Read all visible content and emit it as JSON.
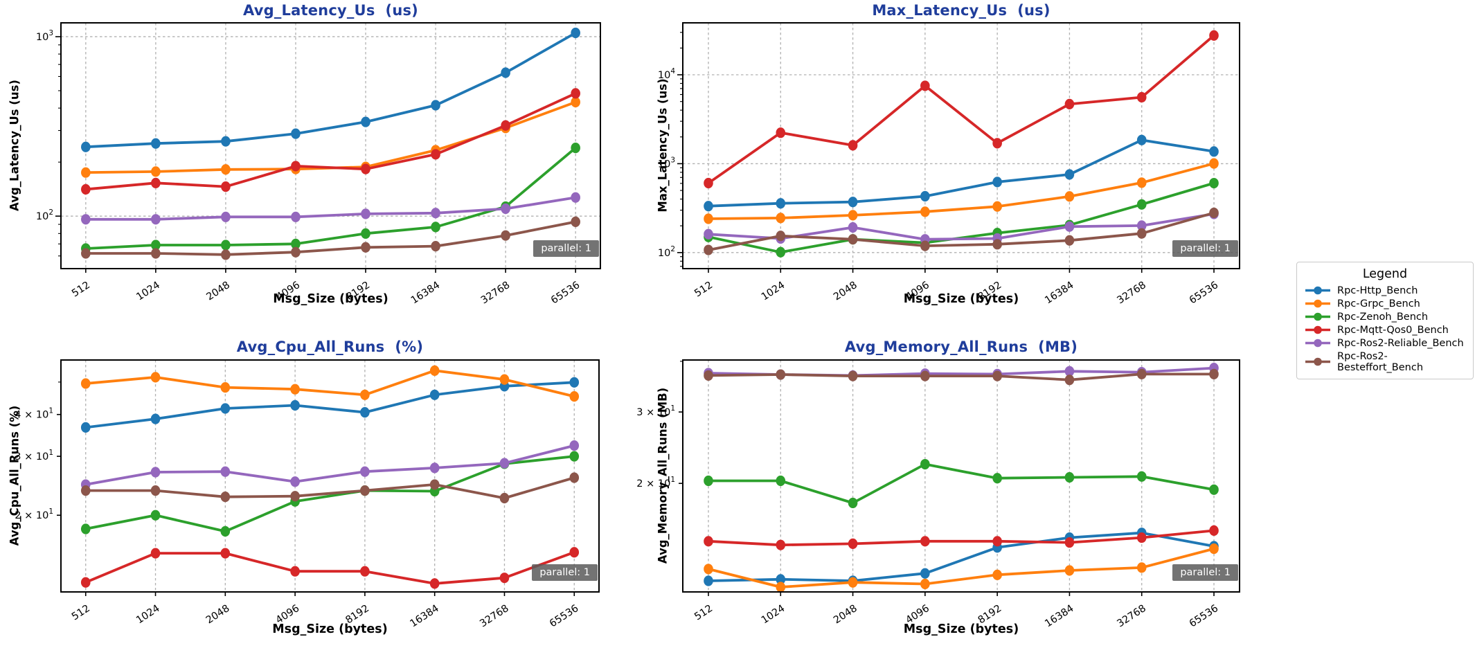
{
  "page": {
    "background": "#ffffff",
    "title_color": "#1f3d9b",
    "grid_color": "#b0b0b0",
    "badge_bg": "#5a5a5a",
    "badge_text_color": "#ffffff"
  },
  "legend": {
    "title": "Legend",
    "position": "right",
    "items": [
      {
        "label": "Rpc-Http_Bench",
        "color": "#1f77b4"
      },
      {
        "label": "Rpc-Grpc_Bench",
        "color": "#ff7f0e"
      },
      {
        "label": "Rpc-Zenoh_Bench",
        "color": "#2ca02c"
      },
      {
        "label": "Rpc-Mqtt-Qos0_Bench",
        "color": "#d62728"
      },
      {
        "label": "Rpc-Ros2-Reliable_Bench",
        "color": "#9467bd"
      },
      {
        "label": "Rpc-Ros2-Besteffort_Bench",
        "color": "#8c564b"
      }
    ]
  },
  "chart_data": [
    {
      "type": "line",
      "log_y": true,
      "grid": "x-dashed + y-major-dashed",
      "title": "Avg_Latency_Us  (us)",
      "xlabel": "Msg_Size (bytes)",
      "ylabel": "Avg_Latency_Us (us)",
      "badge": "parallel: 1",
      "categories": [
        512,
        1024,
        2048,
        4096,
        8192,
        16384,
        32768,
        65536
      ],
      "ylim": [
        51,
        1194
      ],
      "yticks": [
        {
          "value": 100,
          "base": "10",
          "exp": "2",
          "major": true
        },
        {
          "value": 1000,
          "base": "10",
          "exp": "3",
          "major": true
        }
      ],
      "series": [
        {
          "name": "Rpc-Http_Bench",
          "values": [
            243,
            254,
            261,
            288,
            335,
            415,
            630,
            1050
          ]
        },
        {
          "name": "Rpc-Grpc_Bench",
          "values": [
            175,
            177,
            182,
            183,
            188,
            233,
            310,
            432
          ]
        },
        {
          "name": "Rpc-Zenoh_Bench",
          "values": [
            66,
            69,
            69,
            70,
            80,
            87,
            113,
            240
          ]
        },
        {
          "name": "Rpc-Mqtt-Qos0_Bench",
          "values": [
            141,
            153,
            146,
            190,
            183,
            221,
            320,
            483
          ]
        },
        {
          "name": "Rpc-Ros2-Reliable_Bench",
          "values": [
            96,
            96,
            99,
            99,
            103,
            104,
            110,
            127
          ]
        },
        {
          "name": "Rpc-Ros2-Besteffort_Bench",
          "values": [
            62,
            62,
            61,
            63,
            67,
            68,
            78,
            93
          ]
        }
      ]
    },
    {
      "type": "line",
      "log_y": true,
      "grid": "x-dashed + y-major-dashed",
      "title": "Max_Latency_Us  (us)",
      "xlabel": "Msg_Size (bytes)",
      "ylabel": "Max_Latency_Us (us)",
      "badge": "parallel: 1",
      "categories": [
        512,
        1024,
        2048,
        4096,
        8192,
        16384,
        32768,
        65536
      ],
      "ylim": [
        66,
        38400
      ],
      "yticks": [
        {
          "value": 100,
          "base": "10",
          "exp": "2",
          "major": true
        },
        {
          "value": 1000,
          "base": "10",
          "exp": "3",
          "major": true
        },
        {
          "value": 10000,
          "base": "10",
          "exp": "4",
          "major": true
        }
      ],
      "series": [
        {
          "name": "Rpc-Http_Bench",
          "values": [
            333,
            358,
            371,
            430,
            622,
            757,
            1845,
            1371
          ]
        },
        {
          "name": "Rpc-Grpc_Bench",
          "values": [
            240,
            245,
            263,
            288,
            330,
            428,
            611,
            1005
          ]
        },
        {
          "name": "Rpc-Zenoh_Bench",
          "values": [
            150,
            101,
            141,
            129,
            166,
            204,
            348,
            604
          ]
        },
        {
          "name": "Rpc-Mqtt-Qos0_Bench",
          "values": [
            605,
            2230,
            1610,
            7520,
            1700,
            4680,
            5590,
            27700
          ]
        },
        {
          "name": "Rpc-Ros2-Reliable_Bench",
          "values": [
            161,
            144,
            192,
            141,
            144,
            196,
            201,
            272
          ]
        },
        {
          "name": "Rpc-Ros2-Besteffort_Bench",
          "values": [
            107,
            154,
            141,
            119,
            124,
            137,
            164,
            280
          ]
        }
      ]
    },
    {
      "type": "line",
      "log_y": true,
      "grid": "x-dashed",
      "title": "Avg_Cpu_All_Runs  (%)",
      "xlabel": "Msg_Size (bytes)",
      "ylabel": "Avg_Cpu_All_Runs (%)",
      "badge": "parallel: 1",
      "categories": [
        512,
        1024,
        2048,
        4096,
        8192,
        16384,
        32768,
        65536
      ],
      "ylim": [
        11.8,
        58.2
      ],
      "yticks": [
        {
          "value": 20,
          "base": "2 × 10",
          "exp": "1",
          "major": false
        },
        {
          "value": 30,
          "base": "3 × 10",
          "exp": "1",
          "major": false
        },
        {
          "value": 40,
          "base": "4 × 10",
          "exp": "1",
          "major": false
        }
      ],
      "series": [
        {
          "name": "Rpc-Http_Bench",
          "values": [
            36.6,
            38.8,
            41.7,
            42.6,
            40.6,
            45.8,
            48.6,
            49.9
          ]
        },
        {
          "name": "Rpc-Grpc_Bench",
          "values": [
            49.5,
            51.7,
            48.2,
            47.6,
            45.8,
            54.1,
            50.9,
            45.3
          ]
        },
        {
          "name": "Rpc-Zenoh_Bench",
          "values": [
            18.2,
            20.0,
            17.9,
            22.0,
            23.7,
            23.6,
            28.5,
            30.0
          ]
        },
        {
          "name": "Rpc-Mqtt-Qos0_Bench",
          "values": [
            12.6,
            15.4,
            15.4,
            13.6,
            13.6,
            12.5,
            13.0,
            15.5
          ]
        },
        {
          "name": "Rpc-Ros2-Reliable_Bench",
          "values": [
            24.7,
            26.9,
            27.0,
            25.2,
            27.0,
            27.7,
            28.6,
            32.3
          ]
        },
        {
          "name": "Rpc-Ros2-Besteffort_Bench",
          "values": [
            23.7,
            23.7,
            22.7,
            22.8,
            23.7,
            24.7,
            22.5,
            25.9
          ]
        }
      ]
    },
    {
      "type": "line",
      "log_y": true,
      "grid": "x-dashed",
      "title": "Avg_Memory_All_Runs  (MB)",
      "xlabel": "Msg_Size (bytes)",
      "ylabel": "Avg_Memory_All_Runs (MB)",
      "badge": "parallel: 1",
      "categories": [
        512,
        1024,
        2048,
        4096,
        8192,
        16384,
        32768,
        65536
      ],
      "ylim": [
        10.8,
        40.3
      ],
      "yticks": [
        {
          "value": 20,
          "base": "2 × 10",
          "exp": "1",
          "major": false
        },
        {
          "value": 30,
          "base": "3 × 10",
          "exp": "1",
          "major": false
        }
      ],
      "series": [
        {
          "name": "Rpc-Http_Bench",
          "values": [
            11.5,
            11.6,
            11.5,
            12.0,
            13.9,
            14.7,
            15.1,
            14.0
          ]
        },
        {
          "name": "Rpc-Grpc_Bench",
          "values": [
            12.3,
            11.1,
            11.4,
            11.3,
            11.9,
            12.2,
            12.4,
            13.8
          ]
        },
        {
          "name": "Rpc-Zenoh_Bench",
          "values": [
            20.3,
            20.3,
            17.9,
            22.3,
            20.6,
            20.7,
            20.8,
            19.3
          ]
        },
        {
          "name": "Rpc-Mqtt-Qos0_Bench",
          "values": [
            14.4,
            14.1,
            14.2,
            14.4,
            14.4,
            14.3,
            14.7,
            15.3
          ]
        },
        {
          "name": "Rpc-Ros2-Reliable_Bench",
          "values": [
            37.4,
            37.1,
            36.9,
            37.3,
            37.2,
            37.8,
            37.6,
            38.5
          ]
        },
        {
          "name": "Rpc-Ros2-Besteffort_Bench",
          "values": [
            36.9,
            37.1,
            36.8,
            36.8,
            36.8,
            36.0,
            37.2,
            37.2
          ]
        }
      ]
    }
  ]
}
